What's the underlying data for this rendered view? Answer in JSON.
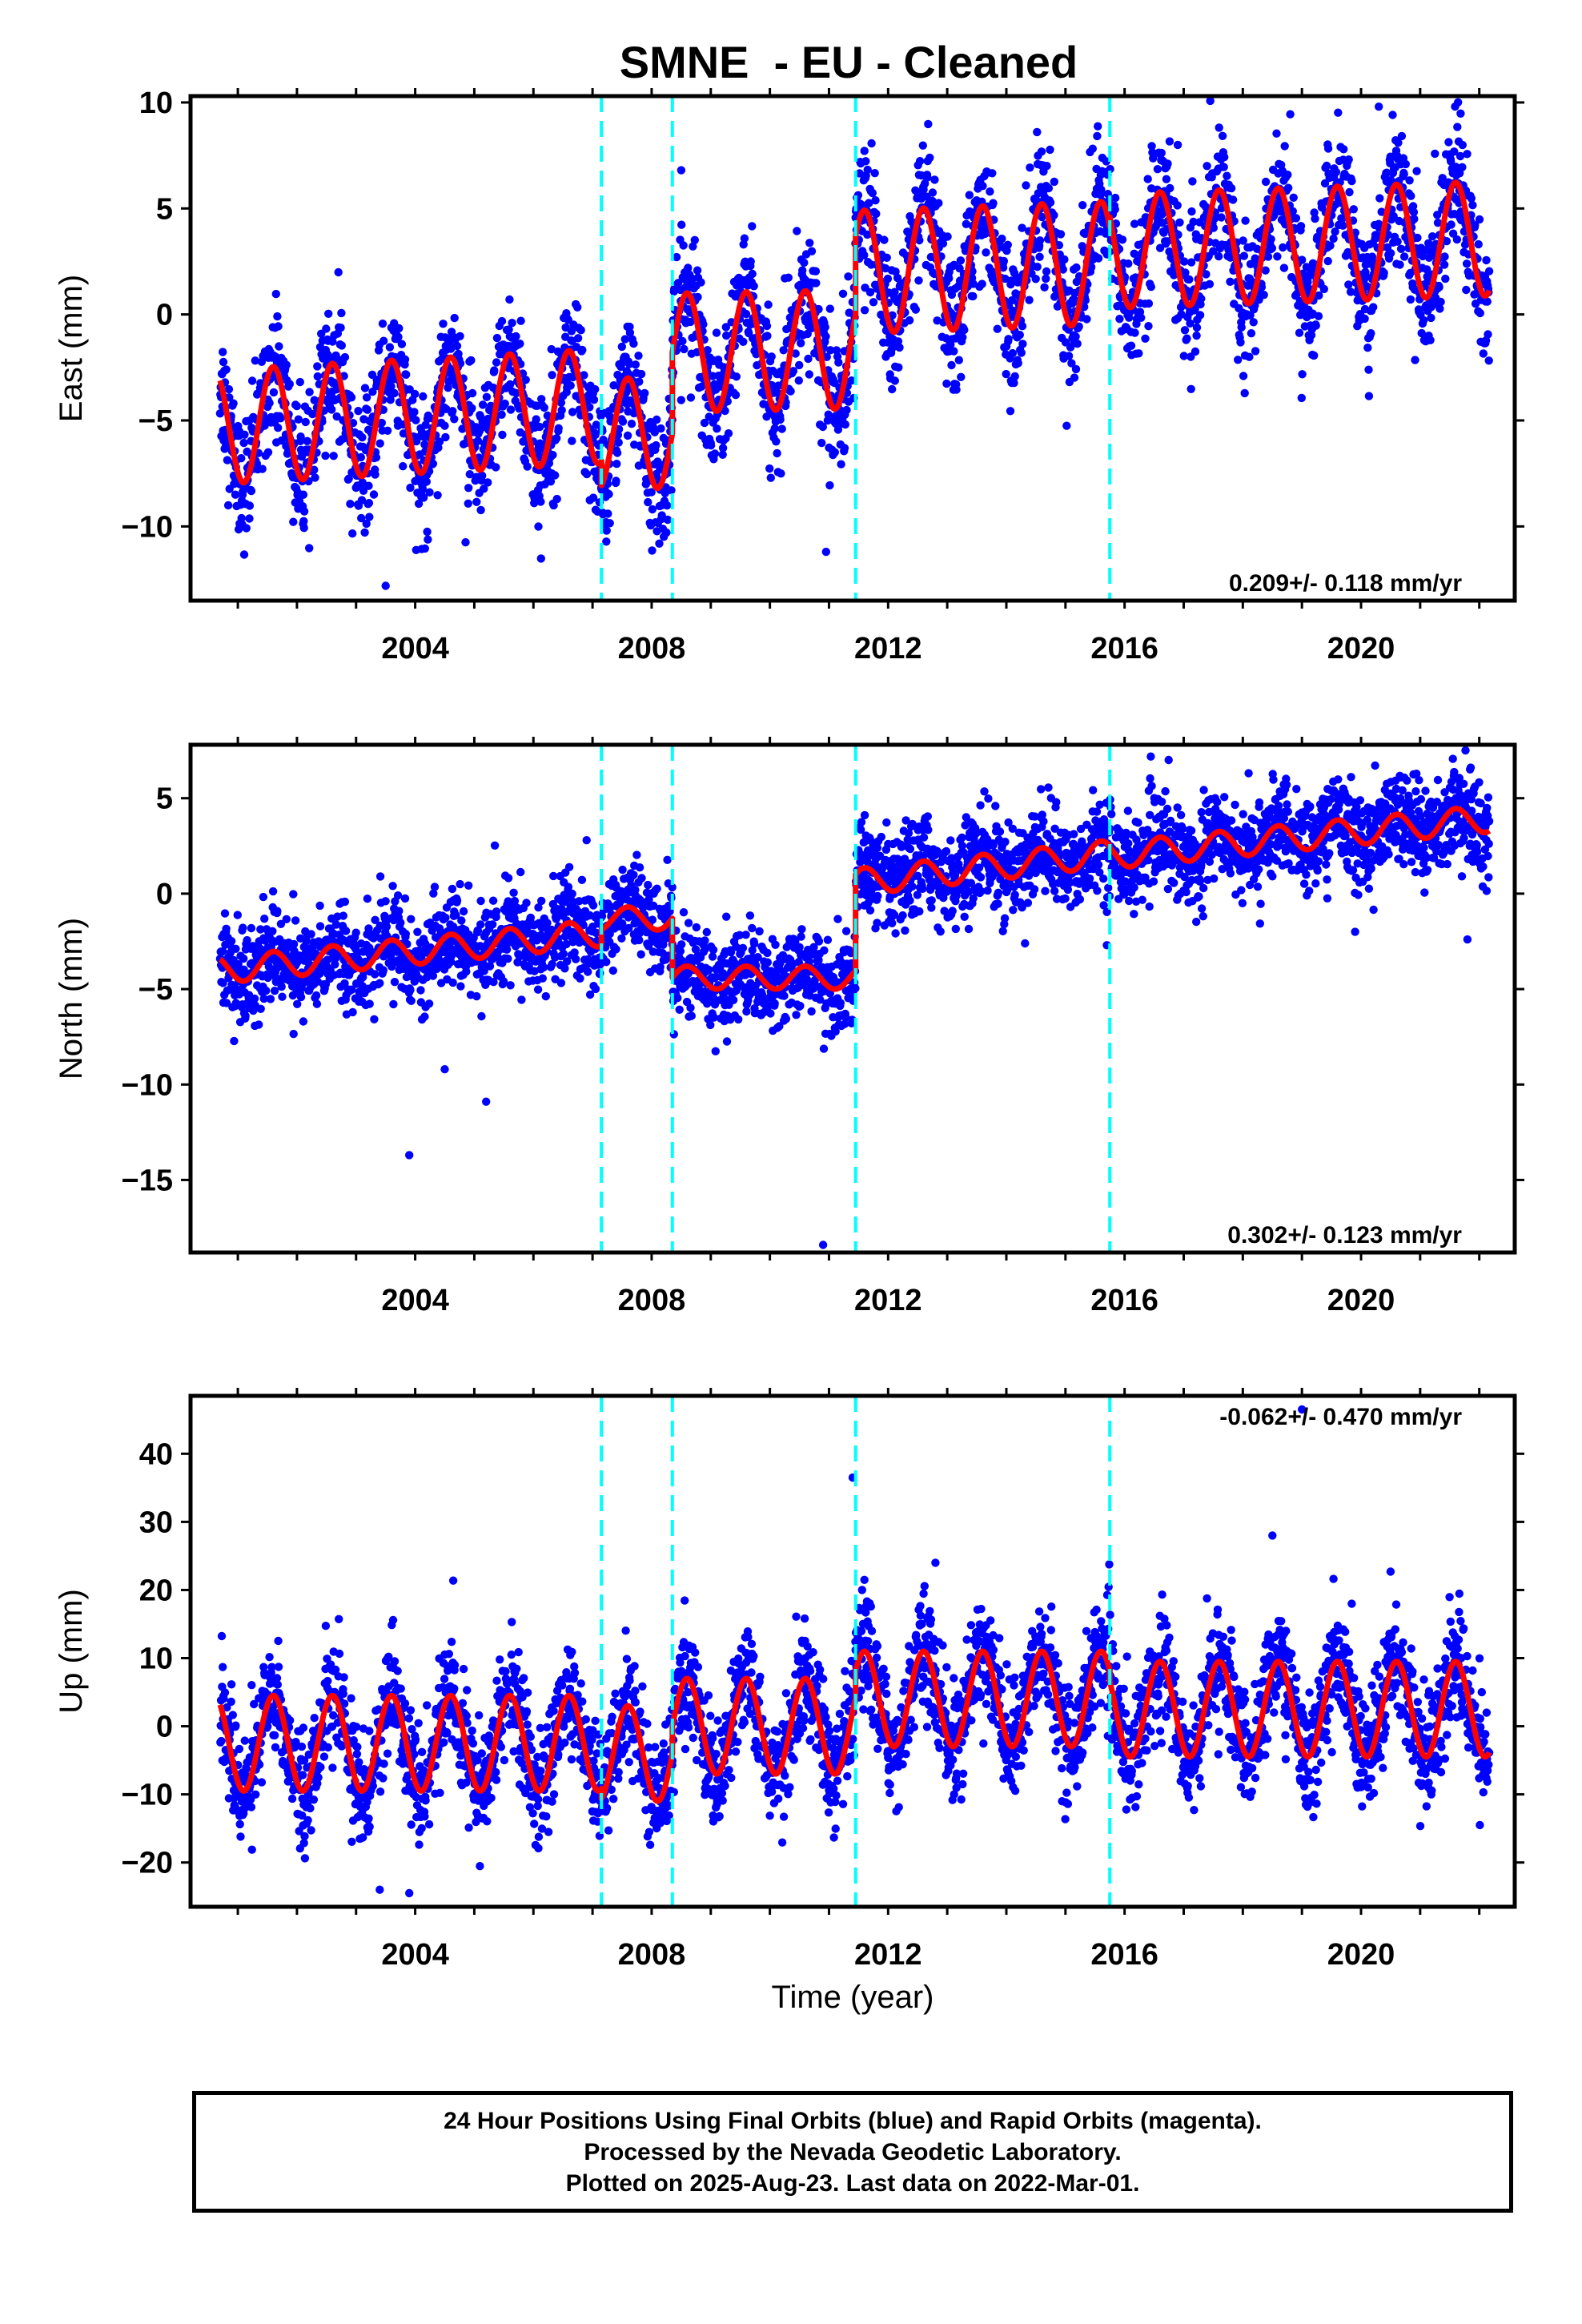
{
  "colors": {
    "final_points": "#0000ff",
    "model_fit": "#ff0000",
    "equipment_change": "#00ffff",
    "axis": "#000000"
  },
  "chart_data": {
    "title": "SMNE  - EU - Cleaned",
    "xlabel": "Time (year)",
    "x_ticks": [
      "2004",
      "2008",
      "2012",
      "2016",
      "2020"
    ],
    "equipment_change_lines": [
      2007.15,
      2008.35,
      2011.45,
      2015.75
    ],
    "panels": [
      {
        "name": "east",
        "type": "scatter",
        "ylabel": "East (mm)",
        "xlim": [
          2000.2,
          2022.6
        ],
        "ylim": [
          -13.5,
          10.3
        ],
        "yticks": [
          "10",
          "5",
          "0",
          "−5",
          "−10"
        ],
        "ytick_values": [
          10,
          5,
          0,
          -5,
          -10
        ],
        "rate": "0.209+/- 0.118 mm/yr",
        "rate_position": "bottom-right",
        "segments": [
          {
            "from": 2000.7,
            "to": 2007.15,
            "offset": -5.3,
            "amplitude": 2.7,
            "trend": 0.15
          },
          {
            "from": 2007.15,
            "to": 2008.35,
            "offset": -5.6,
            "amplitude": 2.6,
            "trend": 0.0
          },
          {
            "from": 2008.35,
            "to": 2011.45,
            "offset": -1.8,
            "amplitude": 2.8,
            "trend": 0.05
          },
          {
            "from": 2011.45,
            "to": 2015.75,
            "offset": 2.0,
            "amplitude": 2.9,
            "trend": 0.1
          },
          {
            "from": 2015.75,
            "to": 2022.17,
            "offset": 3.0,
            "amplitude": 2.7,
            "trend": 0.09
          }
        ],
        "scatter_sigma": 1.5,
        "outliers": [
          [
            2008.5,
            6.8
          ],
          [
            2010.95,
            -11.2
          ],
          [
            2003.5,
            -12.8
          ],
          [
            2016.9,
            8.0
          ],
          [
            2020.3,
            9.8
          ]
        ]
      },
      {
        "name": "north",
        "type": "scatter",
        "ylabel": "North (mm)",
        "xlim": [
          2000.2,
          2022.6
        ],
        "ylim": [
          -18.8,
          7.8
        ],
        "yticks": [
          "5",
          "0",
          "−5",
          "−10",
          "−15"
        ],
        "ytick_values": [
          5,
          0,
          -5,
          -10,
          -15
        ],
        "rate": "0.302+/- 0.123 mm/yr",
        "rate_position": "bottom-right",
        "segments": [
          {
            "from": 2000.7,
            "to": 2007.15,
            "offset": -4.0,
            "amplitude": 0.7,
            "trend": 0.3
          },
          {
            "from": 2007.15,
            "to": 2008.35,
            "offset": -1.3,
            "amplitude": 0.6,
            "trend": 0.0
          },
          {
            "from": 2008.35,
            "to": 2011.45,
            "offset": -4.4,
            "amplitude": 0.6,
            "trend": 0.0
          },
          {
            "from": 2011.45,
            "to": 2015.75,
            "offset": 0.6,
            "amplitude": 0.7,
            "trend": 0.35
          },
          {
            "from": 2015.75,
            "to": 2022.17,
            "offset": 2.0,
            "amplitude": 0.7,
            "trend": 0.3
          }
        ],
        "scatter_sigma": 1.2,
        "outliers": [
          [
            2003.9,
            -13.7
          ],
          [
            2004.5,
            -9.2
          ],
          [
            2005.2,
            -10.9
          ],
          [
            2006.9,
            2.8
          ],
          [
            2010.9,
            -18.4
          ],
          [
            2015.7,
            -2.7
          ],
          [
            2021.8,
            -2.4
          ],
          [
            2019.9,
            -2.0
          ]
        ]
      },
      {
        "name": "up",
        "type": "scatter",
        "ylabel": "Up (mm)",
        "xlim": [
          2000.2,
          2022.6
        ],
        "ylim": [
          -26.5,
          48.5
        ],
        "yticks": [
          "40",
          "30",
          "20",
          "10",
          "0",
          "−10",
          "−20"
        ],
        "ytick_values": [
          40,
          30,
          20,
          10,
          0,
          -10,
          -20
        ],
        "rate": "-0.062+/- 0.470 mm/yr",
        "rate_position": "top-right",
        "segments": [
          {
            "from": 2000.7,
            "to": 2007.15,
            "offset": -2.5,
            "amplitude": 7.0,
            "trend": 0.0
          },
          {
            "from": 2007.15,
            "to": 2008.35,
            "offset": -4.0,
            "amplitude": 7.0,
            "trend": 0.0
          },
          {
            "from": 2008.35,
            "to": 2011.45,
            "offset": 0.0,
            "amplitude": 7.0,
            "trend": 0.0
          },
          {
            "from": 2011.45,
            "to": 2015.75,
            "offset": 4.0,
            "amplitude": 7.0,
            "trend": 0.0
          },
          {
            "from": 2015.75,
            "to": 2022.17,
            "offset": 2.5,
            "amplitude": 7.0,
            "trend": 0.0
          }
        ],
        "scatter_sigma": 4.0,
        "outliers": [
          [
            2011.4,
            36.5
          ],
          [
            2019.0,
            46.5
          ],
          [
            2018.5,
            28.0
          ],
          [
            2020.5,
            22.7
          ],
          [
            2012.8,
            24.0
          ],
          [
            2003.4,
            -24.0
          ],
          [
            2003.9,
            -24.5
          ]
        ]
      }
    ]
  },
  "footer": {
    "line1": "24 Hour Positions Using Final Orbits (blue) and Rapid Orbits (magenta).",
    "line2": "Processed by the Nevada Geodetic Laboratory.",
    "line3": "Plotted on 2025-Aug-23. Last data on 2022-Mar-01."
  }
}
